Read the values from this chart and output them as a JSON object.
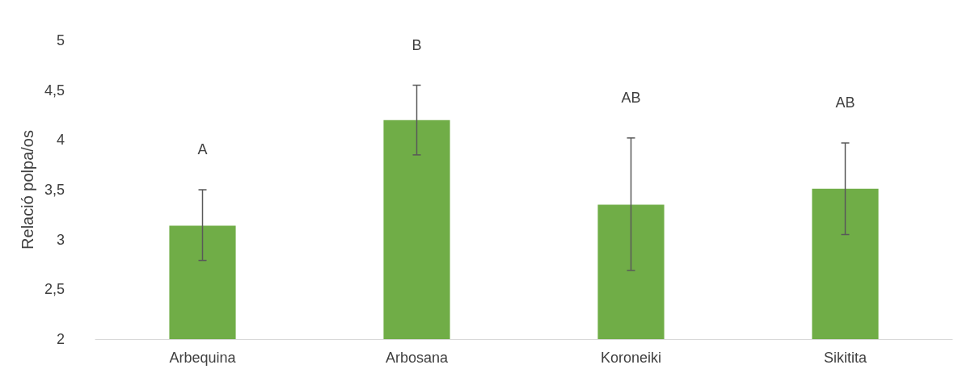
{
  "chart_data": {
    "type": "bar",
    "ylabel": "Relació polpa/os",
    "categories": [
      "Arbequina",
      "Arbosana",
      "Koroneiki",
      "Sikitita"
    ],
    "values": [
      3.14,
      4.2,
      3.35,
      3.51
    ],
    "color": "#70ad47",
    "errors": [
      [
        2.79,
        3.5
      ],
      [
        3.85,
        4.55
      ],
      [
        2.69,
        4.02
      ],
      [
        3.05,
        3.97
      ]
    ],
    "ylim": [
      2,
      5
    ],
    "yticks": [
      2,
      {
        "value": 2.5,
        "label": "2,5"
      },
      3,
      {
        "value": 3.5,
        "label": "3,5"
      },
      4,
      {
        "value": 4.5,
        "label": "4,5"
      },
      5
    ],
    "grid": false,
    "annotations": [
      "A",
      "B",
      "AB",
      "AB"
    ]
  }
}
